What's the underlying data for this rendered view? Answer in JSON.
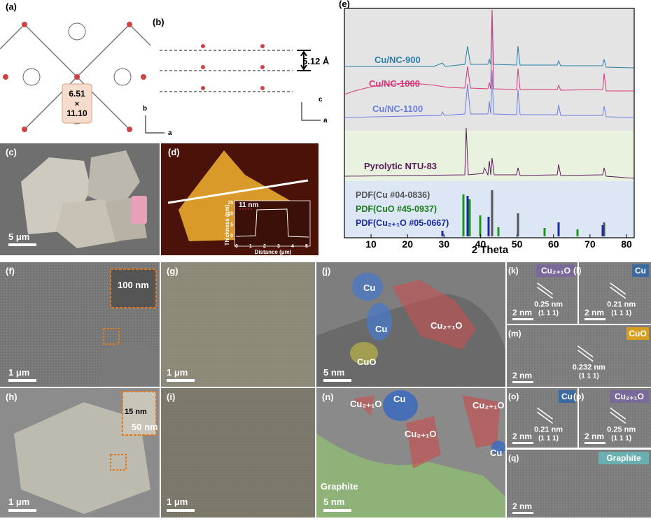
{
  "panels": {
    "a": {
      "label": "(a)",
      "pore": [
        "6.51",
        "×",
        "11.10"
      ],
      "axes": [
        "b",
        "a"
      ]
    },
    "b": {
      "label": "(b)",
      "spacing": "5.12 Å",
      "axes": [
        "c",
        "a"
      ]
    },
    "c": {
      "label": "(c)",
      "scale": "5 μm"
    },
    "d": {
      "label": "(d)",
      "height": "11 nm",
      "ylabel": "Thickness (nm)",
      "xlabel": "Distance (μm)",
      "yticks": [
        "15",
        "10",
        "5",
        "0"
      ],
      "xticks": [
        "0",
        "1",
        "2",
        "3",
        "4",
        "5"
      ]
    },
    "e": {
      "label": "(e)",
      "samples": [
        "Cu/NC-900",
        "Cu/NC-1000",
        "Cu/NC-1100",
        "Pyrolytic NTU-83"
      ],
      "references": [
        "PDF(Cu #04-0836)",
        "PDF(CuO #45-0937)",
        "PDF(Cu₂₊₁O #05-0667)"
      ],
      "xlabel": "2 Theta",
      "xlim": [
        5,
        80
      ],
      "xticks": [
        10,
        20,
        30,
        40,
        50,
        60,
        70,
        80
      ]
    },
    "f": {
      "label": "(f)",
      "inset": "100 nm",
      "scale": "1 μm"
    },
    "g": {
      "label": "(g)",
      "scale": "1 μm"
    },
    "h": {
      "label": "(h)",
      "inset": [
        "15 nm",
        "50 nm"
      ],
      "scale": "1 μm"
    },
    "i": {
      "label": "(i)",
      "scale": "1 μm"
    },
    "j": {
      "label": "(j)",
      "phases": [
        "Cu",
        "Cu",
        "Cu₂₊₁O",
        "CuO"
      ],
      "scale": "5 nm"
    },
    "k": {
      "label": "(k)",
      "phase": "Cu₂₊₁O",
      "spacing": "0.25 nm",
      "plane": "(1 1 1)",
      "scale": "2 nm"
    },
    "l": {
      "label": "(l)",
      "phase": "Cu",
      "spacing": "0.21 nm",
      "plane": "(1 1 1)",
      "scale": "2 nm"
    },
    "m": {
      "label": "(m)",
      "phase": "CuO",
      "spacing": "0.232 nm",
      "plane": "(1 1 1)",
      "scale": "2 nm"
    },
    "n": {
      "label": "(n)",
      "phases": [
        "Cu₂₊₁O",
        "Cu",
        "Cu₂₊₁O",
        "Cu₂₊₁O",
        "Cu",
        "Graphite"
      ],
      "scale": "5 nm"
    },
    "o": {
      "label": "(o)",
      "phase": "Cu",
      "spacing": "0.21 nm",
      "plane": "(1 1 1)",
      "scale": "2 nm"
    },
    "p": {
      "label": "(p)",
      "phase": "Cu₂₊₁O",
      "spacing": "0.25 nm",
      "plane": "(1 1 1)",
      "scale": "2 nm"
    },
    "q": {
      "label": "(q)",
      "phase": "Graphite",
      "scale": "2 nm"
    }
  }
}
